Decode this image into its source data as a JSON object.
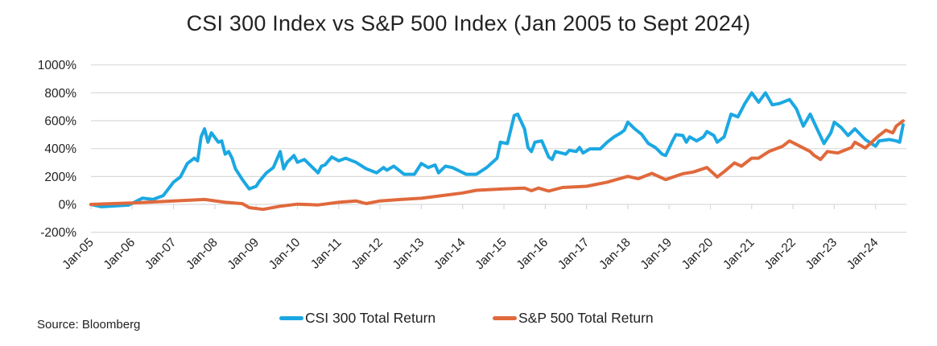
{
  "chart_data": {
    "type": "line",
    "title": "CSI 300 Index vs S&P 500 Index (Jan 2005 to Sept 2024)",
    "xlabel": "",
    "ylabel": "",
    "ylim": [
      -200,
      1000
    ],
    "yticks": [
      "1000%",
      "800%",
      "600%",
      "400%",
      "200%",
      "0%",
      "-200%"
    ],
    "ytick_values": [
      1000,
      800,
      600,
      400,
      200,
      0,
      -200
    ],
    "xticks": [
      "Jan-05",
      "Jan-06",
      "Jan-07",
      "Jan-08",
      "Jan-09",
      "Jan-10",
      "Jan-11",
      "Jan-12",
      "Jan-13",
      "Jan-14",
      "Jan-15",
      "Jan-16",
      "Jan-17",
      "Jan-18",
      "Jan-19",
      "Jan-20",
      "Jan-21",
      "Jan-22",
      "Jan-23",
      "Jan-24"
    ],
    "xlim": [
      "2005-01",
      "2024-09"
    ],
    "grid": "horizontal",
    "legend_position": "bottom",
    "series": [
      {
        "name": "CSI 300 Total Return",
        "color": "#1ba8e2",
        "points": [
          [
            "2005-01",
            0
          ],
          [
            "2005-04",
            -17
          ],
          [
            "2005-12",
            -5
          ],
          [
            "2006-04",
            45
          ],
          [
            "2006-07",
            35
          ],
          [
            "2006-10",
            63
          ],
          [
            "2007-01",
            160
          ],
          [
            "2007-03",
            197
          ],
          [
            "2007-05",
            293
          ],
          [
            "2007-07",
            331
          ],
          [
            "2007-08",
            312
          ],
          [
            "2007-09",
            484
          ],
          [
            "2007-10",
            542
          ],
          [
            "2007-11",
            446
          ],
          [
            "2007-12",
            513
          ],
          [
            "2008-02",
            446
          ],
          [
            "2008-03",
            455
          ],
          [
            "2008-04",
            360
          ],
          [
            "2008-05",
            379
          ],
          [
            "2008-06",
            331
          ],
          [
            "2008-07",
            255
          ],
          [
            "2008-09",
            178
          ],
          [
            "2008-11",
            111
          ],
          [
            "2009-01",
            130
          ],
          [
            "2009-02",
            168
          ],
          [
            "2009-04",
            226
          ],
          [
            "2009-06",
            264
          ],
          [
            "2009-08",
            379
          ],
          [
            "2009-09",
            255
          ],
          [
            "2009-10",
            302
          ],
          [
            "2009-12",
            350
          ],
          [
            "2010-01",
            302
          ],
          [
            "2010-03",
            322
          ],
          [
            "2010-07",
            226
          ],
          [
            "2010-08",
            274
          ],
          [
            "2010-09",
            283
          ],
          [
            "2010-11",
            340
          ],
          [
            "2011-01",
            312
          ],
          [
            "2011-03",
            331
          ],
          [
            "2011-06",
            302
          ],
          [
            "2011-09",
            255
          ],
          [
            "2011-12",
            226
          ],
          [
            "2012-02",
            264
          ],
          [
            "2012-03",
            245
          ],
          [
            "2012-05",
            274
          ],
          [
            "2012-08",
            216
          ],
          [
            "2012-11",
            216
          ],
          [
            "2013-01",
            293
          ],
          [
            "2013-03",
            264
          ],
          [
            "2013-05",
            283
          ],
          [
            "2013-06",
            226
          ],
          [
            "2013-08",
            274
          ],
          [
            "2013-10",
            264
          ],
          [
            "2014-02",
            216
          ],
          [
            "2014-05",
            216
          ],
          [
            "2014-08",
            264
          ],
          [
            "2014-11",
            331
          ],
          [
            "2014-12",
            446
          ],
          [
            "2015-02",
            436
          ],
          [
            "2015-04",
            637
          ],
          [
            "2015-05",
            647
          ],
          [
            "2015-07",
            542
          ],
          [
            "2015-08",
            408
          ],
          [
            "2015-09",
            379
          ],
          [
            "2015-10",
            446
          ],
          [
            "2015-12",
            455
          ],
          [
            "2016-02",
            340
          ],
          [
            "2016-03",
            322
          ],
          [
            "2016-04",
            379
          ],
          [
            "2016-07",
            360
          ],
          [
            "2016-08",
            388
          ],
          [
            "2016-10",
            379
          ],
          [
            "2016-11",
            408
          ],
          [
            "2016-12",
            369
          ],
          [
            "2017-02",
            398
          ],
          [
            "2017-05",
            398
          ],
          [
            "2017-07",
            446
          ],
          [
            "2017-09",
            484
          ],
          [
            "2017-11",
            513
          ],
          [
            "2017-12",
            532
          ],
          [
            "2018-01",
            590
          ],
          [
            "2018-03",
            542
          ],
          [
            "2018-05",
            503
          ],
          [
            "2018-07",
            436
          ],
          [
            "2018-09",
            408
          ],
          [
            "2018-11",
            360
          ],
          [
            "2018-12",
            350
          ],
          [
            "2019-02",
            455
          ],
          [
            "2019-03",
            500
          ],
          [
            "2019-05",
            494
          ],
          [
            "2019-06",
            446
          ],
          [
            "2019-07",
            484
          ],
          [
            "2019-09",
            455
          ],
          [
            "2019-11",
            484
          ],
          [
            "2019-12",
            522
          ],
          [
            "2020-02",
            494
          ],
          [
            "2020-03",
            446
          ],
          [
            "2020-05",
            484
          ],
          [
            "2020-07",
            647
          ],
          [
            "2020-09",
            628
          ],
          [
            "2020-11",
            723
          ],
          [
            "2021-01",
            800
          ],
          [
            "2021-03",
            733
          ],
          [
            "2021-05",
            800
          ],
          [
            "2021-07",
            714
          ],
          [
            "2021-09",
            723
          ],
          [
            "2021-12",
            752
          ],
          [
            "2022-02",
            685
          ],
          [
            "2022-04",
            561
          ],
          [
            "2022-06",
            647
          ],
          [
            "2022-08",
            542
          ],
          [
            "2022-10",
            436
          ],
          [
            "2022-12",
            513
          ],
          [
            "2023-01",
            590
          ],
          [
            "2023-03",
            551
          ],
          [
            "2023-05",
            494
          ],
          [
            "2023-07",
            542
          ],
          [
            "2023-10",
            465
          ],
          [
            "2024-01",
            417
          ],
          [
            "2024-02",
            455
          ],
          [
            "2024-05",
            465
          ],
          [
            "2024-07",
            455
          ],
          [
            "2024-08",
            446
          ],
          [
            "2024-09",
            570
          ]
        ]
      },
      {
        "name": "S&P 500 Total Return",
        "color": "#e0693c",
        "points": [
          [
            "2005-01",
            0
          ],
          [
            "2006-01",
            10
          ],
          [
            "2007-01",
            25
          ],
          [
            "2007-10",
            35
          ],
          [
            "2008-04",
            15
          ],
          [
            "2008-09",
            5
          ],
          [
            "2008-11",
            -23
          ],
          [
            "2009-03",
            -36
          ],
          [
            "2009-08",
            -13
          ],
          [
            "2010-01",
            2
          ],
          [
            "2010-07",
            -4
          ],
          [
            "2011-01",
            15
          ],
          [
            "2011-06",
            25
          ],
          [
            "2011-09",
            6
          ],
          [
            "2012-01",
            25
          ],
          [
            "2012-07",
            35
          ],
          [
            "2013-01",
            44
          ],
          [
            "2013-07",
            63
          ],
          [
            "2014-01",
            82
          ],
          [
            "2014-05",
            101
          ],
          [
            "2015-01",
            111
          ],
          [
            "2015-07",
            117
          ],
          [
            "2015-09",
            98
          ],
          [
            "2015-11",
            117
          ],
          [
            "2016-02",
            96
          ],
          [
            "2016-06",
            121
          ],
          [
            "2017-01",
            130
          ],
          [
            "2017-07",
            159
          ],
          [
            "2018-01",
            201
          ],
          [
            "2018-04",
            184
          ],
          [
            "2018-08",
            222
          ],
          [
            "2018-12",
            178
          ],
          [
            "2019-05",
            220
          ],
          [
            "2019-08",
            232
          ],
          [
            "2019-12",
            264
          ],
          [
            "2020-03",
            197
          ],
          [
            "2020-05",
            235
          ],
          [
            "2020-08",
            297
          ],
          [
            "2020-10",
            274
          ],
          [
            "2021-01",
            331
          ],
          [
            "2021-03",
            331
          ],
          [
            "2021-06",
            379
          ],
          [
            "2021-10",
            417
          ],
          [
            "2021-12",
            455
          ],
          [
            "2022-03",
            417
          ],
          [
            "2022-06",
            379
          ],
          [
            "2022-07",
            354
          ],
          [
            "2022-09",
            322
          ],
          [
            "2022-11",
            379
          ],
          [
            "2023-02",
            369
          ],
          [
            "2023-06",
            408
          ],
          [
            "2023-07",
            446
          ],
          [
            "2023-10",
            404
          ],
          [
            "2024-02",
            494
          ],
          [
            "2024-04",
            532
          ],
          [
            "2024-06",
            513
          ],
          [
            "2024-07",
            561
          ],
          [
            "2024-09",
            599
          ]
        ]
      }
    ],
    "source": "Source: Bloomberg"
  }
}
